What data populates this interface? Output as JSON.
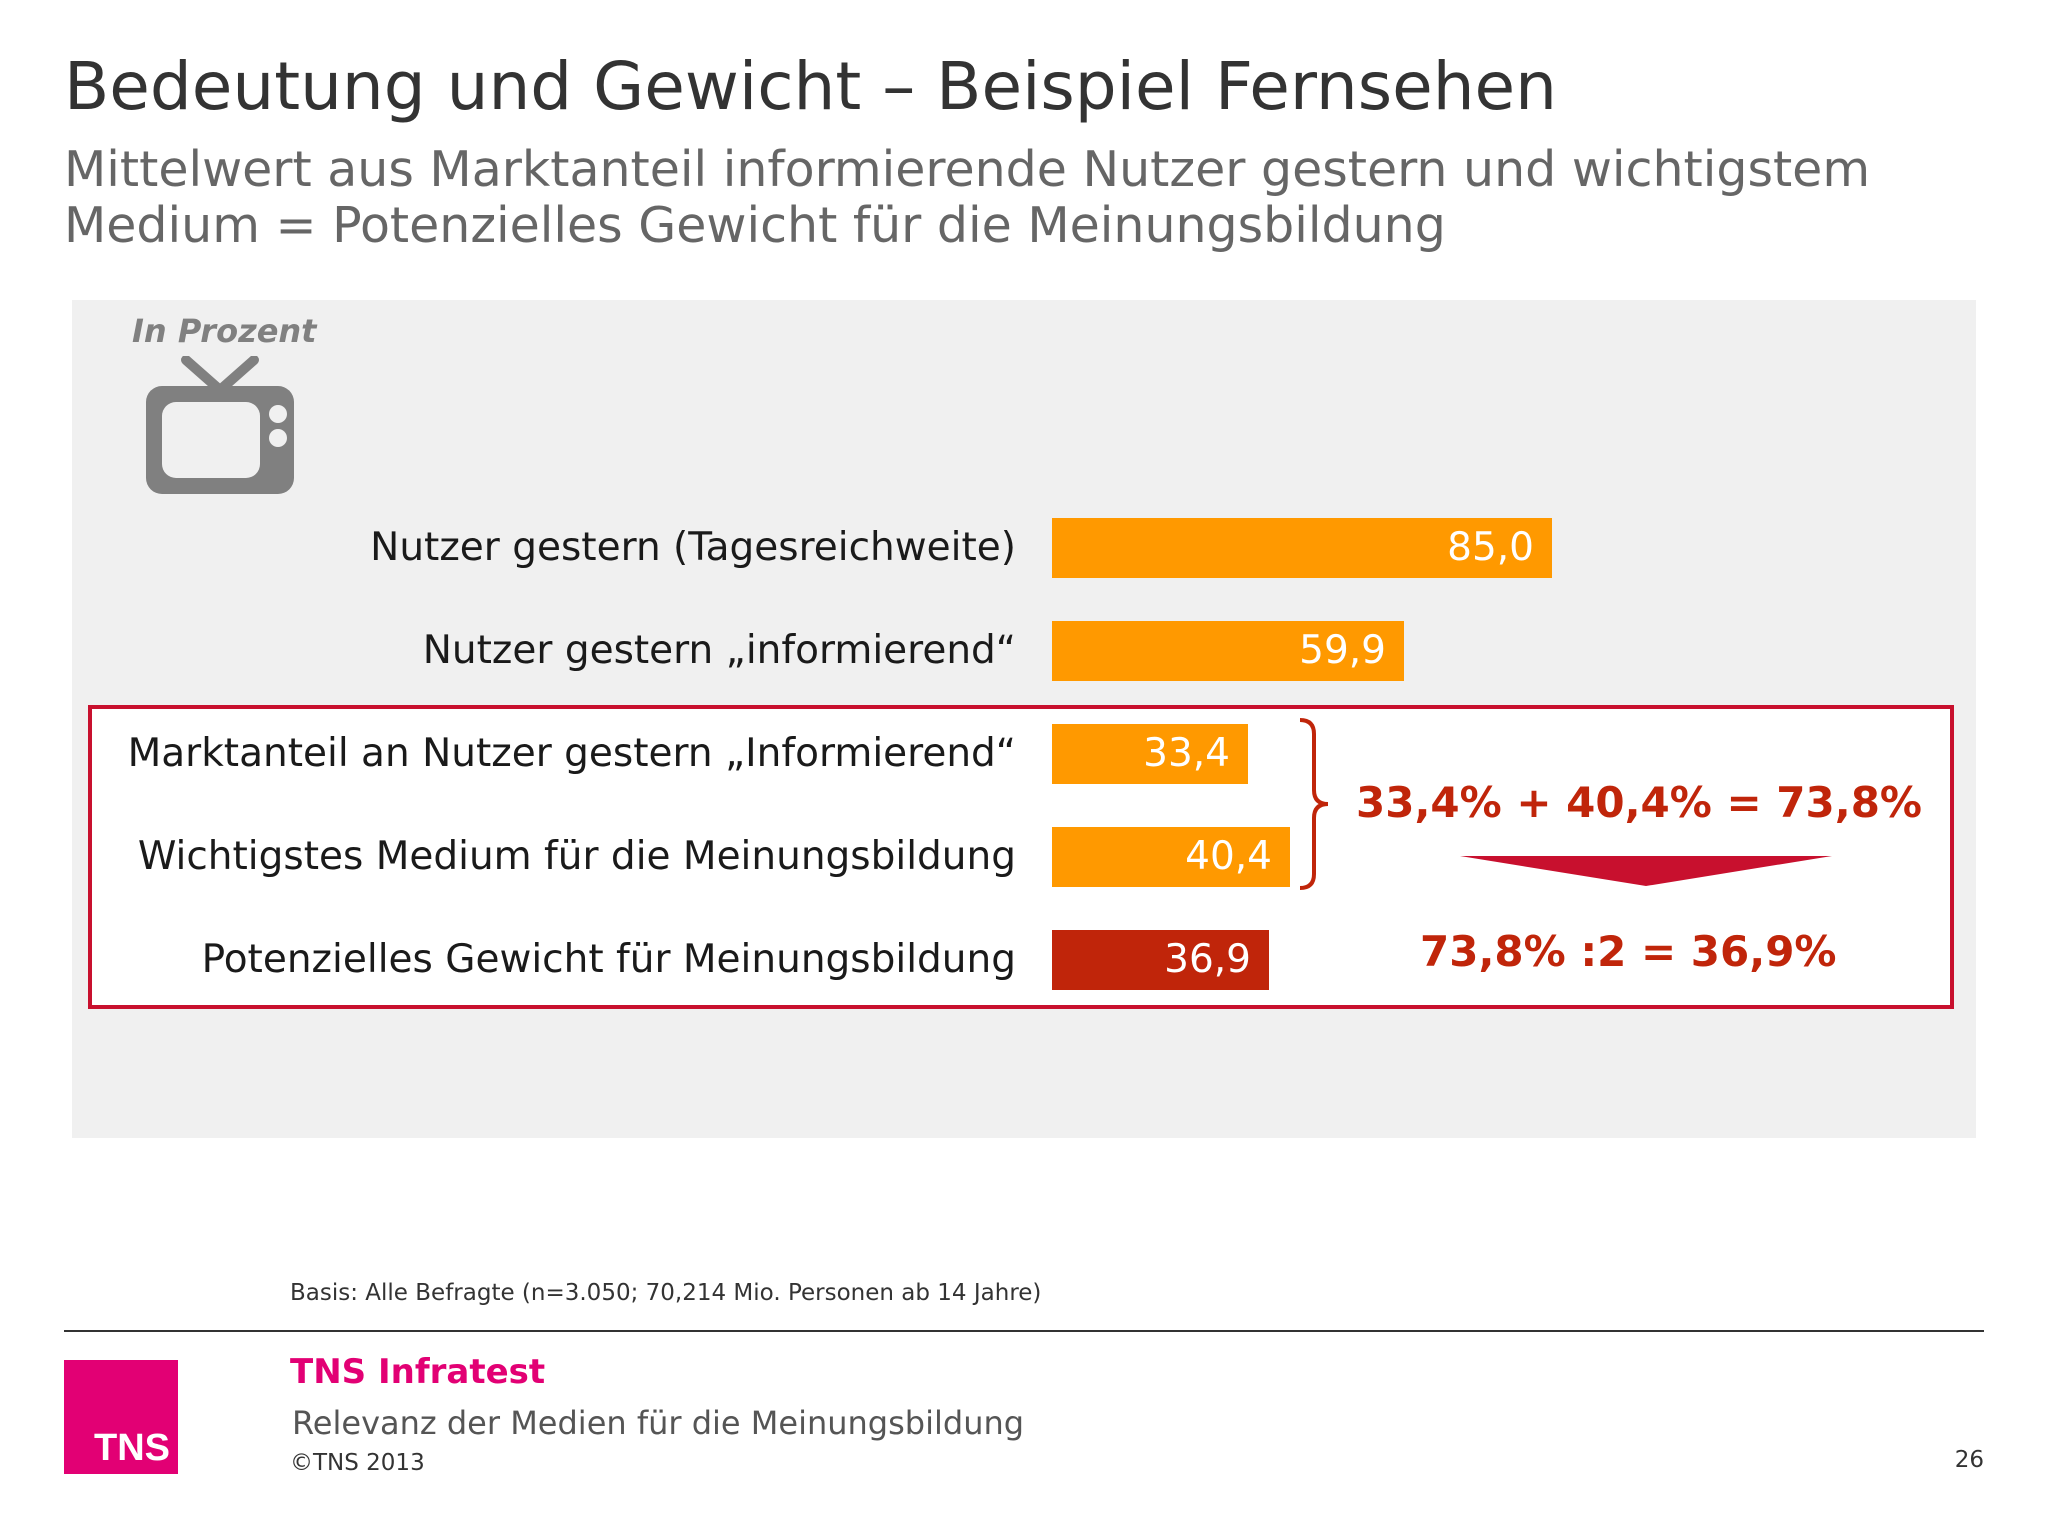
{
  "title": "Bedeutung und Gewicht – Beispiel Fernsehen",
  "subtitle": {
    "line1": "Mittelwert aus Marktanteil informierende Nutzer gestern und wichtigstem",
    "line2": "Medium = Potenzielles Gewicht für die Meinungsbildung"
  },
  "unit_label": "In Prozent",
  "icon": "television-icon",
  "colors": {
    "bar_orange": "#ff9900",
    "bar_red": "#c0250a",
    "highlight": "#c8102e",
    "brand": "#e20074"
  },
  "chart_data": {
    "type": "bar",
    "orientation": "horizontal",
    "categories": [
      "Nutzer gestern (Tagesreichweite)",
      "Nutzer gestern „informierend“",
      "Marktanteil an Nutzer gestern „Informierend“",
      "Wichtigstes Medium für die Meinungsbildung",
      "Potenzielles Gewicht für Meinungsbildung"
    ],
    "values": [
      85.0,
      59.9,
      33.4,
      40.4,
      36.9
    ],
    "value_labels": [
      "85,0",
      "59,9",
      "33,4",
      "40,4",
      "36,9"
    ],
    "bar_colors": [
      "#ff9900",
      "#ff9900",
      "#ff9900",
      "#ff9900",
      "#c0250a"
    ],
    "xlim": [
      0,
      100
    ],
    "grid": false,
    "annotations": [
      "33,4% + 40,4% = 73,8%",
      "73,8% :2 = 36,9%"
    ]
  },
  "footer": {
    "basis": "Basis: Alle Befragte (n=3.050; 70,214 Mio. Personen ab 14 Jahre)",
    "company": "TNS Infratest",
    "subject": "Relevanz der Medien für die Meinungsbildung",
    "copyright": "©TNS 2013",
    "page_number": "26",
    "logo_text": "TNS"
  }
}
